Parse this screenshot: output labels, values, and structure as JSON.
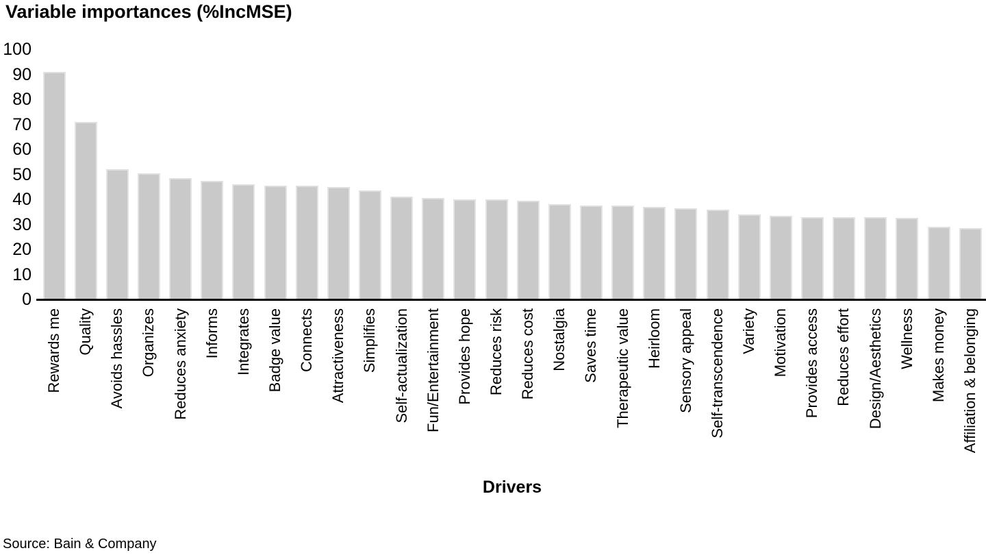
{
  "chart": {
    "title": "Variable importances (%IncMSE)"
  },
  "chart_data": {
    "type": "bar",
    "title": "Variable importances (%IncMSE)",
    "xlabel": "Drivers",
    "ylabel": "",
    "ylim": [
      0,
      100
    ],
    "yticks": [
      0,
      10,
      20,
      30,
      40,
      50,
      60,
      70,
      80,
      90,
      100
    ],
    "grid": false,
    "legend": "none",
    "bar_color": "#c9c9c9",
    "axis_color": "#000000",
    "categories": [
      "Rewards me",
      "Quality",
      "Avoids hassles",
      "Organizes",
      "Reduces anxiety",
      "Informs",
      "Integrates",
      "Badge value",
      "Connects",
      "Attractiveness",
      "Simplifies",
      "Self-actualization",
      "Fun/Entertainment",
      "Provides hope",
      "Reduces risk",
      "Reduces cost",
      "Nostalgia",
      "Saves time",
      "Therapeutic value",
      "Heirloom",
      "Sensory appeal",
      "Self-transcendence",
      "Variety",
      "Motivation",
      "Provides access",
      "Reduces effort",
      "Design/Aesthetics",
      "Wellness",
      "Makes money",
      "Affiliation & belonging"
    ],
    "values": [
      91,
      71,
      52,
      50.5,
      48.5,
      47.5,
      46,
      45.5,
      45.5,
      45,
      43.5,
      41,
      40.5,
      40,
      40,
      39.5,
      38,
      37.5,
      37.5,
      37,
      36.5,
      36,
      34,
      33.5,
      33,
      33,
      33,
      32.5,
      29,
      28.5
    ]
  },
  "footer": {
    "source": "Source: Bain & Company"
  }
}
